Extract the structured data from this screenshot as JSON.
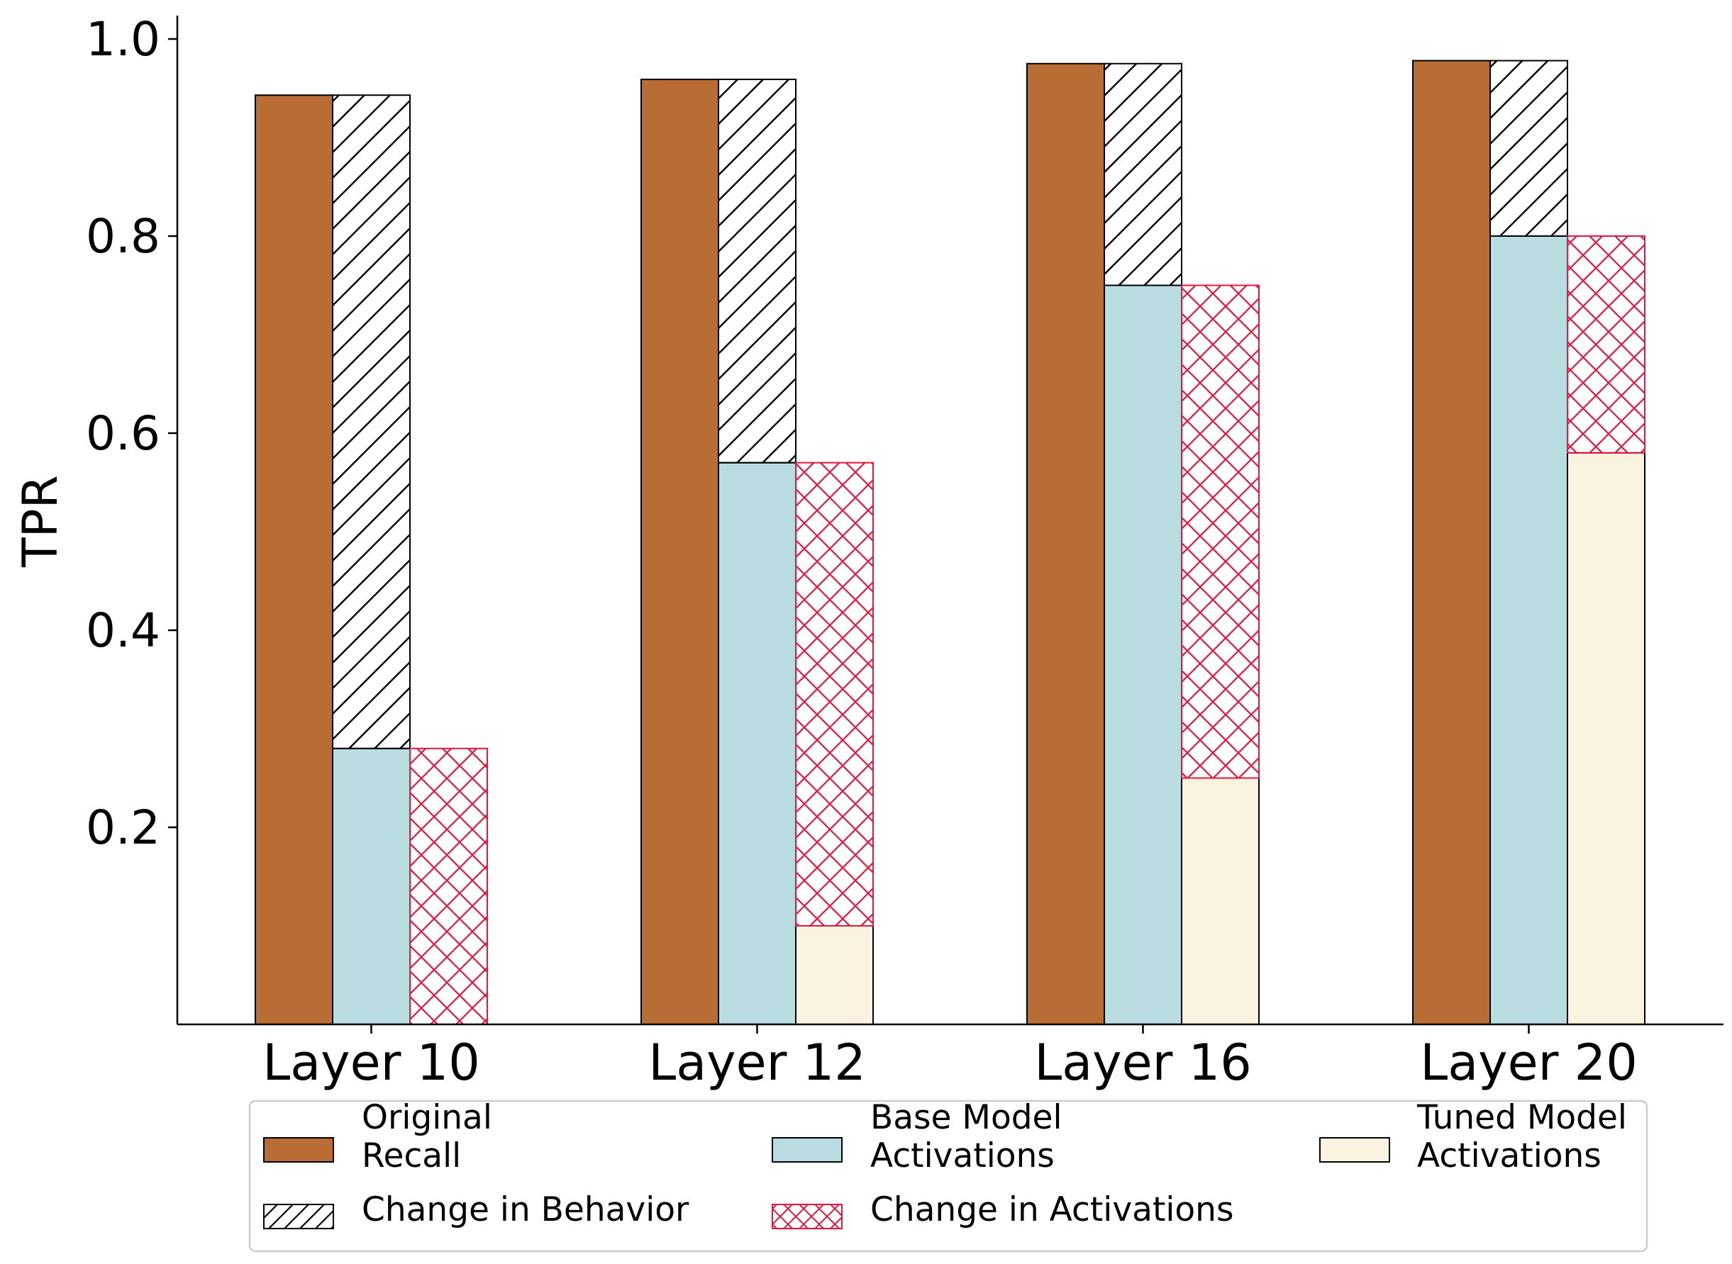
{
  "chart_data": {
    "type": "bar",
    "title": "",
    "xlabel": "",
    "ylabel": "TPR",
    "ylim": [
      0,
      1.0
    ],
    "yticks": [
      "0.2",
      "0.4",
      "0.6",
      "0.8",
      "1.0"
    ],
    "categories": [
      "Layer 10",
      "Layer 12",
      "Layer 16",
      "Layer 20"
    ],
    "grid": false,
    "legend_position": "bottom",
    "series": [
      {
        "name": "Original Recall",
        "values": [
          0.943,
          0.959,
          0.975,
          0.978
        ]
      },
      {
        "name": "Base Model Activations",
        "values": [
          0.28,
          0.57,
          0.75,
          0.8
        ]
      },
      {
        "name": "Tuned Model Activations",
        "values": [
          0.0,
          0.1,
          0.25,
          0.58
        ]
      }
    ],
    "overlays": [
      {
        "name": "Change in Behavior",
        "from_series": "Base Model Activations",
        "to_series": "Original Recall",
        "pattern": "diagonal hatch",
        "color": "#000000"
      },
      {
        "name": "Change in Activations",
        "from_series": "Tuned Model Activations",
        "to_series": "Base Model Activations",
        "pattern": "cross hatch",
        "color": "#e8173f"
      }
    ],
    "legend": {
      "items": [
        {
          "label_lines": [
            "Original",
            "Recall"
          ],
          "swatch": "original"
        },
        {
          "label_lines": [
            "Change in Behavior"
          ],
          "swatch": "behavior"
        },
        {
          "label_lines": [
            "Base Model",
            "Activations"
          ],
          "swatch": "base"
        },
        {
          "label_lines": [
            "Change in Activations"
          ],
          "swatch": "activations"
        },
        {
          "label_lines": [
            "Tuned Model",
            "Activations"
          ],
          "swatch": "tuned"
        }
      ]
    },
    "colors": {
      "original": "#b96d34",
      "base": "#b8dcdf",
      "tuned": "#faf3e0",
      "behavior_hatch": "#000000",
      "activations_hatch": "#e8173f"
    }
  }
}
